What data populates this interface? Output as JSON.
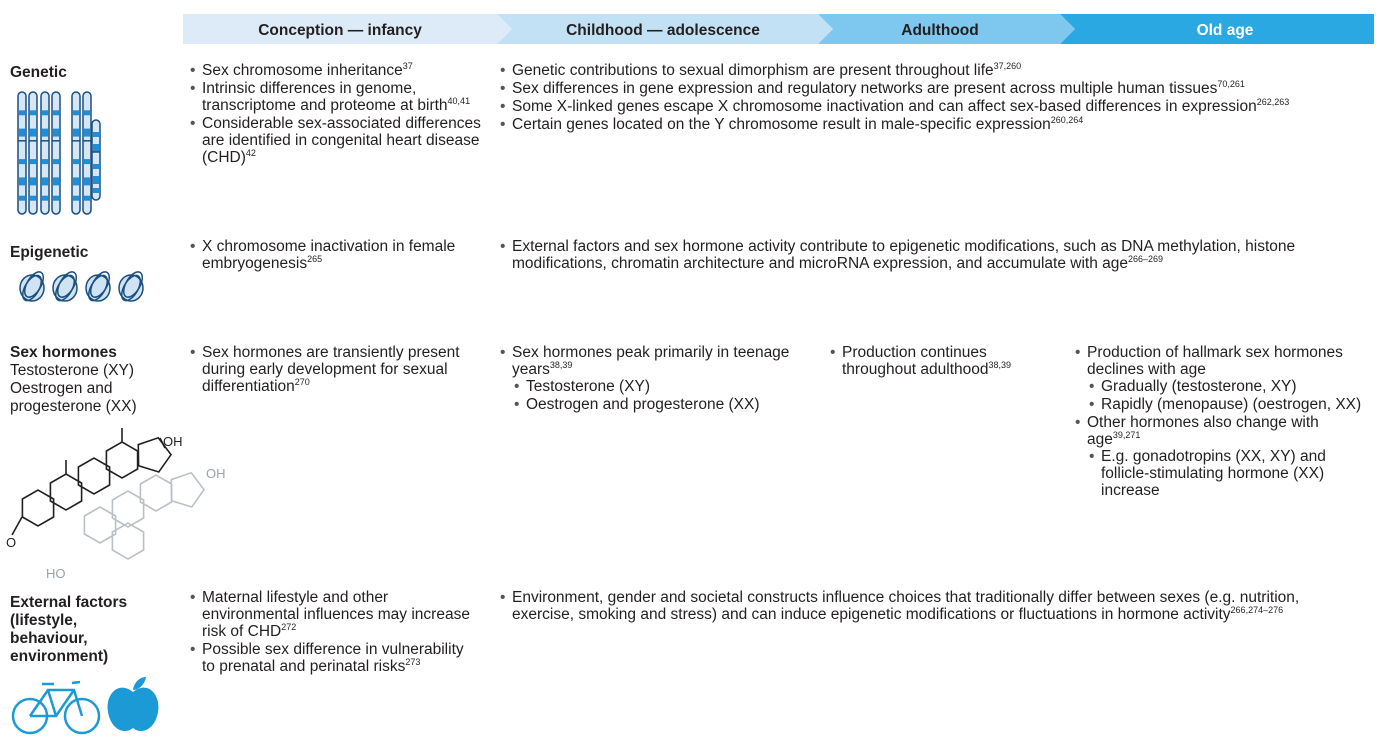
{
  "header": {
    "stages": [
      "Conception — infancy",
      "Childhood — adolescence",
      "Adulthood",
      "Old age"
    ]
  },
  "rows": [
    {
      "label": "Genetic",
      "cells": [
        {
          "items": [
            {
              "text": "Sex chromosome inheritance",
              "sup": "37"
            },
            {
              "text": "Intrinsic differences in genome, transcriptome and proteome at birth",
              "sup": "40,41"
            },
            {
              "text": "Considerable sex-associated differences are identified in congenital heart disease (CHD)",
              "sup": "42"
            }
          ]
        },
        {
          "items": [
            {
              "text": "Genetic contributions to sexual dimorphism are present throughout life",
              "sup": "37,260"
            },
            {
              "text": "Sex differences in gene expression and regulatory networks are present across multiple human tissues",
              "sup": "70,261"
            },
            {
              "text": "Some X-linked genes escape X chromosome inactivation and can affect sex-based differences in expression",
              "sup": "262,263"
            },
            {
              "text": "Certain genes located on the Y chromosome result in male-specific expression",
              "sup": "260,264"
            }
          ]
        }
      ]
    },
    {
      "label": "Epigenetic",
      "cells": [
        {
          "items": [
            {
              "text": "X chromosome inactivation in female embryogenesis",
              "sup": "265"
            }
          ]
        },
        {
          "items": [
            {
              "text": "External factors and sex hormone activity contribute to epigenetic modifications, such as  DNA methylation, histone modifications, chromatin architecture and microRNA expression, and accumulate with age",
              "sup": "266–269"
            }
          ]
        }
      ]
    },
    {
      "label": "Sex hormones",
      "sublabels": [
        "Testosterone (XY)",
        "Oestrogen and progesterone (XX)"
      ],
      "structure_labels": [
        "OH",
        "O",
        "OH",
        "HO"
      ],
      "cells": [
        {
          "items": [
            {
              "text": "Sex hormones are transiently present during early development for sexual differentiation",
              "sup": "270"
            }
          ]
        },
        {
          "items": [
            {
              "text": "Sex hormones peak primarily in teenage years",
              "sup": "38,39",
              "items": [
                {
                  "text": "Testosterone (XY)"
                },
                {
                  "text": "Oestrogen and progesterone (XX)"
                }
              ]
            }
          ]
        },
        {
          "items": [
            {
              "text": "Production continues throughout adulthood",
              "sup": "38,39"
            }
          ]
        },
        {
          "items": [
            {
              "text": "Production of hallmark sex hormones declines with age",
              "items": [
                {
                  "text": "Gradually (testosterone, XY)"
                },
                {
                  "text": "Rapidly (menopause) (oestrogen, XX)"
                }
              ]
            },
            {
              "text": "Other hormones also change with age",
              "sup": "39,271",
              "items": [
                {
                  "text": "E.g. gonadotropins (XX, XY) and follicle-stimulating hormone (XX) increase"
                }
              ]
            }
          ]
        }
      ]
    },
    {
      "label": "External factors (lifestyle, behaviour, environment)",
      "cells": [
        {
          "items": [
            {
              "text": "Maternal lifestyle and other environmental influences may increase risk of CHD",
              "sup": "272"
            },
            {
              "text": "Possible sex difference in vulnerability to prenatal and perinatal risks",
              "sup": "273"
            }
          ]
        },
        {
          "items": [
            {
              "text": "Environment, gender and societal constructs influence choices that traditionally differ between sexes (e.g. nutrition, exercise, smoking and stress) and can induce epigenetic modifications or fluctuations in hormone activity",
              "sup": "266,274–276"
            }
          ]
        }
      ]
    }
  ]
}
